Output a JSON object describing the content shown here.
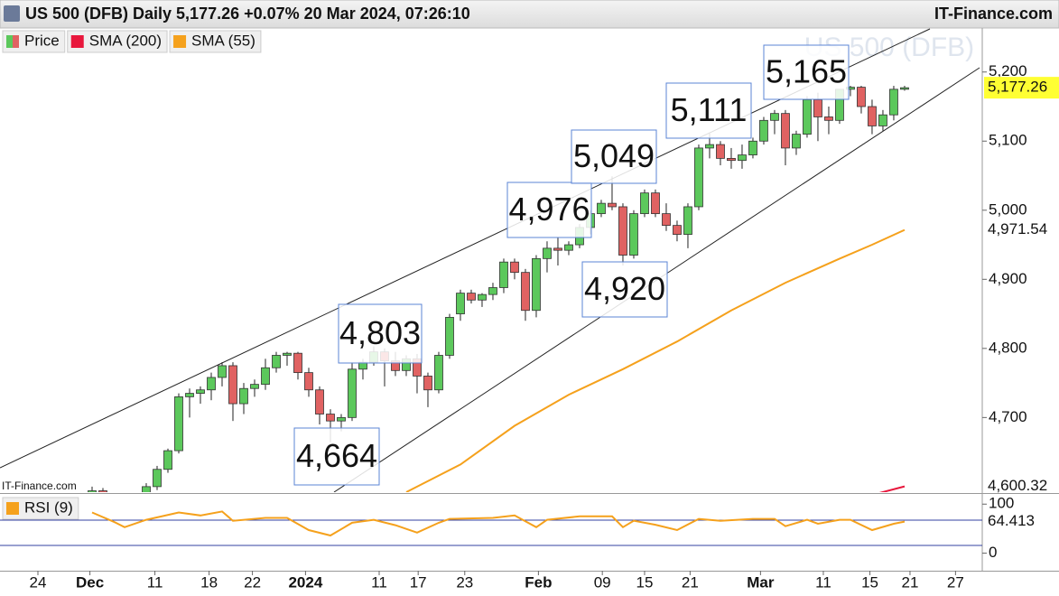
{
  "header": {
    "title": "US 500 (DFB) Daily 5,177.26 +0.07% 20 Mar 2024, 07:26:10",
    "brand": "IT-Finance.com"
  },
  "chart_data": [
    {
      "type": "candlestick",
      "watermark": "US 500 (DFB)",
      "source": "IT-Finance.com",
      "annotations": [
        "4,803",
        "4,664",
        "4,976",
        "5,049",
        "4,920",
        "5,111",
        "5,165"
      ],
      "xlim": [
        -8.5,
        82.17
      ],
      "xticks": [
        {
          "value": -5,
          "label": "24"
        },
        {
          "value": -0.2,
          "label": "Dec"
        },
        {
          "value": 5.8,
          "label": "11"
        },
        {
          "value": 10.8,
          "label": "18"
        },
        {
          "value": 14.8,
          "label": "22"
        },
        {
          "value": 19.7,
          "label": "2024"
        },
        {
          "value": 26.5,
          "label": "11"
        },
        {
          "value": 30.1,
          "label": "17"
        },
        {
          "value": 34.4,
          "label": "23"
        },
        {
          "value": 41.2,
          "label": "Feb"
        },
        {
          "value": 47.1,
          "label": "09"
        },
        {
          "value": 51,
          "label": "15"
        },
        {
          "value": 55.2,
          "label": "21"
        },
        {
          "value": 61.7,
          "label": "Mar"
        },
        {
          "value": 67.5,
          "label": "11"
        },
        {
          "value": 71.8,
          "label": "15"
        },
        {
          "value": 75.5,
          "label": "21"
        },
        {
          "value": 79.7,
          "label": "27"
        }
      ],
      "ylim": [
        4592,
        5265
      ],
      "yticks": [
        {
          "value": 4700,
          "label": "4,700"
        },
        {
          "value": 4800,
          "label": "4,800"
        },
        {
          "value": 4900,
          "label": "4,900"
        },
        {
          "value": 5000,
          "label": "5,000"
        },
        {
          "value": 5100,
          "label": "5,100"
        },
        {
          "value": 5200,
          "label": "5,200"
        }
      ],
      "series": [
        {
          "name": "Price",
          "up_color": "#5cc85c",
          "down_color": "#e06262",
          "x": [
            0,
            1,
            2,
            3,
            4,
            5,
            6,
            7,
            8,
            9,
            10,
            11,
            12,
            13,
            14,
            15,
            16,
            17,
            18,
            19,
            20,
            21,
            22,
            23,
            24,
            25,
            26,
            27,
            28,
            29,
            30,
            31,
            32,
            33,
            34,
            35,
            36,
            37,
            38,
            39,
            40,
            41,
            42,
            43,
            44,
            45,
            46,
            47,
            48,
            49,
            50,
            51,
            52,
            53,
            54,
            55,
            56,
            57,
            58,
            59,
            60,
            61,
            62,
            63,
            64,
            65,
            66,
            67,
            68,
            69,
            70,
            71,
            72,
            73,
            74,
            75
          ],
          "open": [
            4585,
            4594,
            4588,
            4582,
            4586,
            4590,
            4600,
            4625,
            4652,
            4730,
            4735,
            4740,
            4758,
            4775,
            4720,
            4742,
            4748,
            4772,
            4790,
            4793,
            4765,
            4740,
            4705,
            4695,
            4700,
            4770,
            4780,
            4795,
            4782,
            4768,
            4785,
            4760,
            4740,
            4790,
            4850,
            4880,
            4870,
            4878,
            4888,
            4925,
            4910,
            4855,
            4930,
            4945,
            4942,
            4950,
            4975,
            4995,
            5010,
            5005,
            4935,
            4995,
            5025,
            4995,
            4978,
            4965,
            5005,
            5090,
            5095,
            5075,
            5072,
            5080,
            5100,
            5130,
            5140,
            5090,
            5110,
            5160,
            5135,
            5130,
            5175,
            5178,
            5150,
            5122,
            5138,
            5175
          ],
          "high": [
            4600,
            4598,
            4592,
            4590,
            4592,
            4605,
            4630,
            4655,
            4735,
            4742,
            4745,
            4765,
            4780,
            4780,
            4750,
            4755,
            4785,
            4795,
            4795,
            4795,
            4772,
            4745,
            4712,
            4705,
            4780,
            4785,
            4803,
            4800,
            4795,
            4790,
            4792,
            4765,
            4795,
            4850,
            4885,
            4885,
            4880,
            4895,
            4930,
            4930,
            4915,
            4935,
            4955,
            4960,
            4955,
            4980,
            5000,
            5015,
            5049,
            5010,
            5000,
            5030,
            5030,
            5010,
            4985,
            5010,
            5095,
            5111,
            5100,
            5090,
            5095,
            5105,
            5135,
            5145,
            5145,
            5115,
            5165,
            5170,
            5150,
            5175,
            5180,
            5180,
            5160,
            5145,
            5180,
            5180
          ],
          "low": [
            4575,
            4580,
            4575,
            4570,
            4575,
            4580,
            4595,
            4620,
            4648,
            4700,
            4720,
            4725,
            4745,
            4695,
            4705,
            4730,
            4740,
            4765,
            4775,
            4755,
            4730,
            4690,
            4664,
            4680,
            4695,
            4755,
            4775,
            4745,
            4760,
            4760,
            4735,
            4715,
            4735,
            4785,
            4840,
            4865,
            4860,
            4870,
            4880,
            4900,
            4840,
            4845,
            4910,
            4920,
            4935,
            4945,
            4965,
            4990,
            5000,
            4920,
            4930,
            4990,
            4990,
            4970,
            4955,
            4945,
            5000,
            5075,
            5065,
            5060,
            5060,
            5075,
            5095,
            5110,
            5065,
            5080,
            5105,
            5100,
            5110,
            5125,
            5165,
            5140,
            5110,
            5115,
            5130,
            5173
          ],
          "close": [
            4594,
            4588,
            4582,
            4586,
            4590,
            4600,
            4625,
            4652,
            4730,
            4735,
            4740,
            4758,
            4775,
            4720,
            4742,
            4748,
            4772,
            4790,
            4793,
            4765,
            4740,
            4705,
            4695,
            4700,
            4770,
            4780,
            4795,
            4782,
            4768,
            4785,
            4760,
            4740,
            4790,
            4845,
            4880,
            4870,
            4878,
            4888,
            4925,
            4910,
            4855,
            4930,
            4945,
            4942,
            4950,
            4975,
            4995,
            5010,
            5005,
            4935,
            4995,
            5025,
            4995,
            4978,
            4965,
            5005,
            5090,
            5095,
            5075,
            5072,
            5080,
            5100,
            5130,
            5140,
            5090,
            5110,
            5160,
            5135,
            5130,
            5175,
            5178,
            5150,
            5122,
            5138,
            5175,
            5177.26
          ],
          "value_labels": [
            null,
            null,
            null,
            null,
            null,
            null,
            null,
            null,
            null,
            null,
            null,
            null,
            null,
            null,
            null,
            null,
            null,
            null,
            null,
            null,
            null,
            null,
            null,
            null,
            null,
            null,
            null,
            null,
            null,
            null,
            null,
            null,
            null,
            null,
            null,
            null,
            null,
            null,
            null,
            null,
            null,
            null,
            null,
            null,
            null,
            null,
            null,
            null,
            null,
            null,
            null,
            null,
            null,
            null,
            null,
            null,
            null,
            null,
            null,
            null,
            null,
            null,
            null,
            null,
            null,
            null,
            null,
            null,
            null,
            null,
            null,
            null,
            null,
            null,
            null,
            "5,177.26"
          ]
        },
        {
          "name": "SMA (200)",
          "color": "#e8173c",
          "x": [
            72,
            75
          ],
          "values": [
            4588,
            4600.32
          ],
          "value_labels": [
            null,
            "4,600.32"
          ]
        },
        {
          "name": "SMA (55)",
          "color": "#f5a11c",
          "x": [
            29,
            34,
            39,
            44,
            49,
            54,
            59,
            64,
            69,
            72,
            75
          ],
          "values": [
            4592,
            4632,
            4688,
            4733,
            4770,
            4810,
            4855,
            4895,
            4930,
            4950,
            4971.54
          ],
          "value_labels": [
            null,
            null,
            null,
            null,
            null,
            null,
            null,
            null,
            null,
            null,
            "4,971.54"
          ]
        }
      ]
    },
    {
      "type": "line",
      "ylim": [
        -35.8,
        118.9
      ],
      "yticks": [
        100,
        0
      ],
      "series": [
        {
          "name": "RSI (9)",
          "color": "#f5a11c",
          "x": [
            0,
            2,
            3,
            5,
            8,
            10,
            12,
            13,
            16,
            18,
            20,
            22,
            24,
            26,
            28,
            30,
            32,
            33,
            37,
            39,
            41,
            42,
            45,
            48,
            49,
            50,
            52,
            54,
            56,
            58,
            61,
            63,
            64,
            66,
            67,
            69,
            70,
            72,
            74,
            75
          ],
          "values": [
            83,
            64,
            53,
            68,
            83,
            77,
            85,
            66,
            72,
            72,
            47,
            36,
            62,
            68,
            57,
            42,
            62,
            70,
            72,
            77,
            53,
            68,
            75,
            75,
            53,
            66,
            58,
            47,
            70,
            66,
            70,
            70,
            55,
            68,
            60,
            68,
            68,
            47,
            60,
            64.413
          ],
          "value_labels": [
            null,
            null,
            null,
            null,
            null,
            null,
            null,
            null,
            null,
            null,
            null,
            null,
            null,
            null,
            null,
            null,
            null,
            null,
            null,
            null,
            null,
            null,
            null,
            null,
            null,
            null,
            null,
            null,
            null,
            null,
            null,
            null,
            null,
            null,
            null,
            null,
            null,
            null,
            null,
            "64.413"
          ]
        }
      ]
    }
  ]
}
